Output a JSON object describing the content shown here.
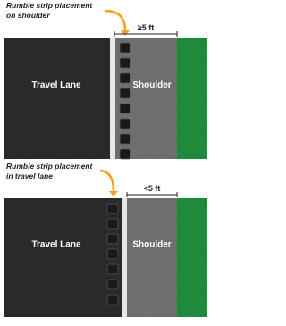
{
  "panels": [
    {
      "caption": [
        "Rumble strip placement",
        "on shoulder"
      ],
      "dimension": "≥5 ft",
      "lane_label": "Travel Lane",
      "shoulder_label": "Shoulder"
    },
    {
      "caption": [
        "Rumble strip placement",
        "in travel lane"
      ],
      "dimension": "<5 ft",
      "lane_label": "Travel Lane",
      "shoulder_label": "Shoulder"
    }
  ]
}
